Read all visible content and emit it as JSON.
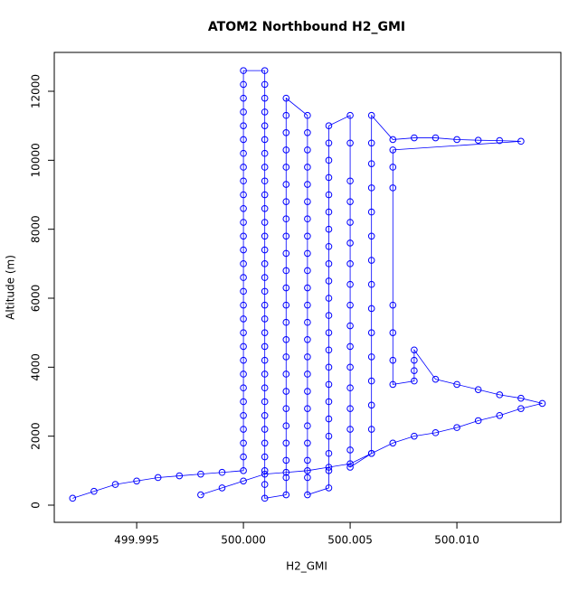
{
  "chart_data": {
    "type": "scatter-line",
    "title": "ATOM2 Northbound H2_GMI",
    "x_label": "H2_GMI",
    "y_label": "Altitude (m)",
    "color": "#0000ff",
    "xlim": [
      499.99114,
      500.01487
    ],
    "ylim": [
      -498,
      13127
    ],
    "xticks": [
      {
        "value": 499.995,
        "label": "499.995"
      },
      {
        "value": 500,
        "label": "500.000"
      },
      {
        "value": 500.005,
        "label": "500.005"
      },
      {
        "value": 500.01,
        "label": "500.010"
      }
    ],
    "yticks": [
      0,
      2000,
      4000,
      6000,
      8000,
      10000,
      12000
    ],
    "x": [
      499.992,
      499.993,
      499.994,
      499.995,
      499.996,
      499.997,
      499.998,
      499.999,
      500,
      500,
      500,
      500,
      500,
      500,
      500,
      500,
      500,
      500,
      500,
      500,
      500,
      500,
      500,
      500,
      500,
      500,
      500,
      500,
      500,
      500,
      500,
      500,
      500,
      500,
      500,
      500,
      500,
      500,
      500.001,
      500.001,
      500.001,
      500.001,
      500.001,
      500.001,
      500.001,
      500.001,
      500.001,
      500.001,
      500.001,
      500.001,
      500.001,
      500.001,
      500.001,
      500.001,
      500.001,
      500.001,
      500.001,
      500.001,
      500.001,
      500.001,
      500.001,
      500.001,
      500.001,
      500.001,
      500.001,
      500.001,
      500.001,
      500.001,
      500.001,
      500.001,
      500.002,
      500.002,
      500.002,
      500.002,
      500.002,
      500.002,
      500.002,
      500.002,
      500.002,
      500.002,
      500.002,
      500.002,
      500.002,
      500.002,
      500.002,
      500.002,
      500.002,
      500.002,
      500.002,
      500.002,
      500.002,
      500.002,
      500.002,
      500.002,
      500.003,
      500.003,
      500.003,
      500.003,
      500.003,
      500.003,
      500.003,
      500.003,
      500.003,
      500.003,
      500.003,
      500.003,
      500.003,
      500.003,
      500.003,
      500.003,
      500.003,
      500.003,
      500.003,
      500.003,
      500.003,
      500.003,
      500.003,
      500.004,
      500.004,
      500.004,
      500.004,
      500.004,
      500.004,
      500.004,
      500.004,
      500.004,
      500.004,
      500.004,
      500.004,
      500.004,
      500.004,
      500.004,
      500.004,
      500.004,
      500.004,
      500.004,
      500.004,
      500.004,
      500.004,
      500.005,
      500.005,
      500.005,
      500.005,
      500.005,
      500.005,
      500.005,
      500.005,
      500.005,
      500.005,
      500.005,
      500.005,
      500.005,
      500.005,
      500.005,
      500.005,
      500.005,
      500.006,
      500.006,
      500.006,
      500.006,
      500.006,
      500.006,
      500.006,
      500.006,
      500.006,
      500.006,
      500.006,
      500.006,
      500.006,
      500.006,
      500.006,
      500.007,
      500.008,
      500.009,
      500.01,
      500.011,
      500.012,
      500.013,
      500.007,
      500.007,
      500.007,
      500.007,
      500.007,
      500.007,
      500.007,
      500.008,
      500.008,
      500.008,
      500.008,
      500.009,
      500.01,
      500.011,
      500.012,
      500.013,
      500.014,
      500.013,
      500.012,
      500.011,
      500.01,
      500.009,
      500.008,
      500.007,
      500.006,
      500.005,
      500.004,
      500.003,
      500.002,
      500.001,
      500,
      499.999,
      499.998
    ],
    "y": [
      200,
      400,
      600,
      700,
      800,
      850,
      900,
      950,
      1000,
      1400,
      1800,
      2200,
      2600,
      3000,
      3400,
      3800,
      4200,
      4600,
      5000,
      5400,
      5800,
      6200,
      6600,
      7000,
      7400,
      7800,
      8200,
      8600,
      9000,
      9400,
      9800,
      10200,
      10600,
      11000,
      11400,
      11800,
      12200,
      12600,
      12600,
      12200,
      11800,
      11400,
      11000,
      10600,
      10200,
      9800,
      9400,
      9000,
      8600,
      8200,
      7800,
      7400,
      7000,
      6600,
      6200,
      5800,
      5400,
      5000,
      4600,
      4200,
      3800,
      3400,
      3000,
      2600,
      2200,
      1800,
      1400,
      1000,
      600,
      200,
      300,
      800,
      1300,
      1800,
      2300,
      2800,
      3300,
      3800,
      4300,
      4800,
      5300,
      5800,
      6300,
      6800,
      7300,
      7800,
      8300,
      8800,
      9300,
      9800,
      10300,
      10800,
      11300,
      11800,
      11300,
      10800,
      10300,
      9800,
      9300,
      8800,
      8300,
      7800,
      7300,
      6800,
      6300,
      5800,
      5300,
      4800,
      4300,
      3800,
      3300,
      2800,
      2300,
      1800,
      1300,
      800,
      300,
      500,
      1000,
      1500,
      2000,
      2500,
      3000,
      3500,
      4000,
      4500,
      5000,
      5500,
      6000,
      6500,
      7000,
      7500,
      8000,
      8500,
      9000,
      9500,
      10000,
      10500,
      11000,
      11300,
      10500,
      9400,
      8800,
      8200,
      7600,
      7000,
      6400,
      5800,
      5200,
      4600,
      4000,
      3400,
      2800,
      2200,
      1600,
      1100,
      1500,
      2200,
      2900,
      3600,
      4300,
      5000,
      5700,
      6400,
      7100,
      7800,
      8500,
      9200,
      9900,
      10500,
      11300,
      10600,
      10650,
      10650,
      10600,
      10580,
      10570,
      10550,
      10300,
      9800,
      9200,
      5800,
      5000,
      4200,
      3500,
      3600,
      3900,
      4200,
      4500,
      3650,
      3500,
      3350,
      3200,
      3100,
      2950,
      2800,
      2600,
      2450,
      2250,
      2100,
      2000,
      1800,
      1500,
      1200,
      1100,
      1000,
      950,
      900,
      700,
      500,
      300
    ]
  }
}
